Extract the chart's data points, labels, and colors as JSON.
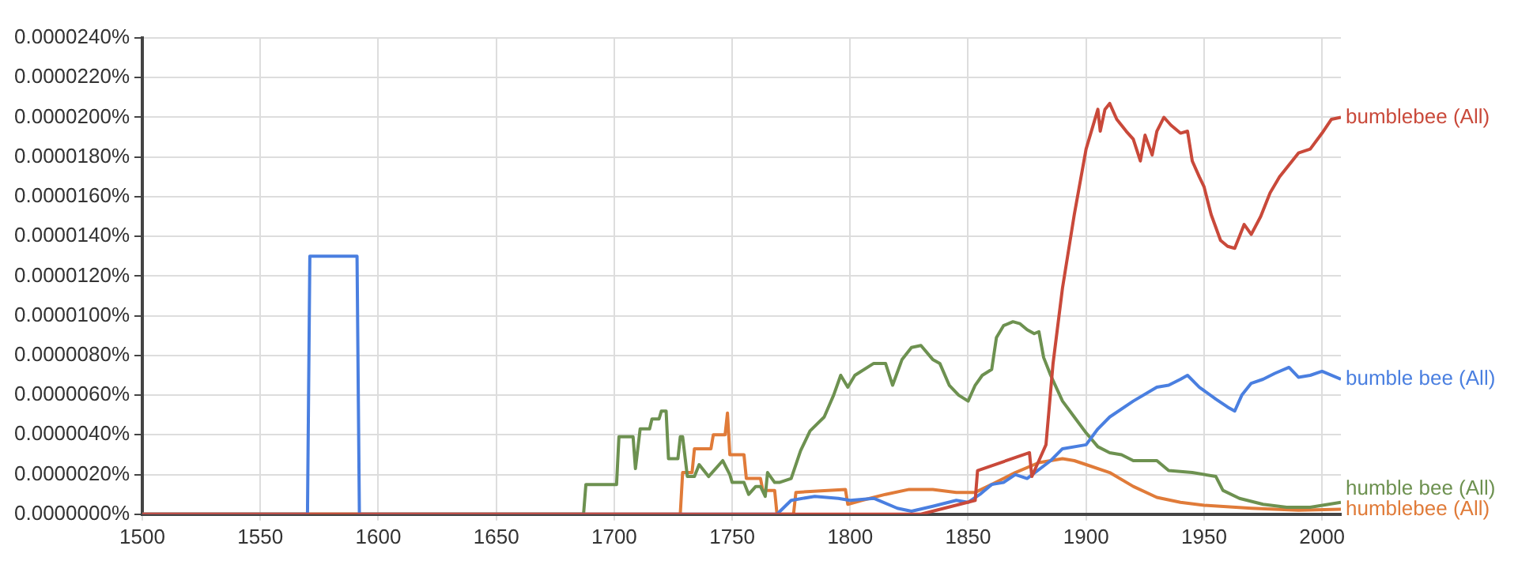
{
  "chart_data": {
    "type": "line",
    "marker": "none",
    "grid": true,
    "legend": false,
    "xlim": [
      1500,
      2008
    ],
    "xticks": [
      1500,
      1550,
      1600,
      1650,
      1700,
      1750,
      1800,
      1850,
      1900,
      1950,
      2000
    ],
    "ylim": [
      0,
      2.4e-05
    ],
    "yticks": [
      {
        "value": 0,
        "label": "0.0000000%"
      },
      {
        "value": 2e-06,
        "label": "0.0000020%"
      },
      {
        "value": 4e-06,
        "label": "0.0000040%"
      },
      {
        "value": 6e-06,
        "label": "0.0000060%"
      },
      {
        "value": 8e-06,
        "label": "0.0000080%"
      },
      {
        "value": 1e-05,
        "label": "0.0000100%"
      },
      {
        "value": 1.2e-05,
        "label": "0.0000120%"
      },
      {
        "value": 1.4e-05,
        "label": "0.0000140%"
      },
      {
        "value": 1.6e-05,
        "label": "0.0000160%"
      },
      {
        "value": 1.8e-05,
        "label": "0.0000180%"
      },
      {
        "value": 2e-05,
        "label": "0.0000200%"
      },
      {
        "value": 2.2e-05,
        "label": "0.0000220%"
      },
      {
        "value": 2.4e-05,
        "label": "0.0000240%"
      }
    ],
    "series": [
      {
        "name": "bumblebee (All)",
        "color": "#c9493a",
        "x": [
          1500,
          1830,
          1853,
          1854,
          1876,
          1877,
          1880,
          1883,
          1886,
          1890,
          1895,
          1900,
          1905,
          1906,
          1908,
          1910,
          1913,
          1917,
          1920,
          1923,
          1925,
          1928,
          1930,
          1933,
          1936,
          1940,
          1943,
          1945,
          1948,
          1950,
          1953,
          1957,
          1960,
          1963,
          1965,
          1967,
          1970,
          1974,
          1978,
          1982,
          1986,
          1990,
          1995,
          2000,
          2004,
          2008
        ],
        "values": [
          0,
          0,
          7e-07,
          2.2e-06,
          3.1e-06,
          1.9e-06,
          2.7e-06,
          3.5e-06,
          7.6e-06,
          1.14e-05,
          1.51e-05,
          1.84e-05,
          2.04e-05,
          1.93e-05,
          2.04e-05,
          2.07e-05,
          1.99e-05,
          1.93e-05,
          1.89e-05,
          1.78e-05,
          1.91e-05,
          1.81e-05,
          1.93e-05,
          2e-05,
          1.96e-05,
          1.92e-05,
          1.93e-05,
          1.78e-05,
          1.7e-05,
          1.65e-05,
          1.51e-05,
          1.38e-05,
          1.35e-05,
          1.34e-05,
          1.4e-05,
          1.46e-05,
          1.41e-05,
          1.5e-05,
          1.62e-05,
          1.7e-05,
          1.76e-05,
          1.82e-05,
          1.84e-05,
          1.92e-05,
          1.99e-05,
          2e-05
        ]
      },
      {
        "name": "bumble bee (All)",
        "color": "#4a7fe0",
        "x": [
          1500,
          1570,
          1571,
          1591,
          1592,
          1769,
          1775,
          1785,
          1795,
          1800,
          1810,
          1820,
          1826,
          1835,
          1845,
          1850,
          1855,
          1860,
          1865,
          1870,
          1875,
          1885,
          1890,
          1900,
          1905,
          1910,
          1920,
          1930,
          1935,
          1940,
          1943,
          1948,
          1955,
          1960,
          1963,
          1966,
          1970,
          1975,
          1980,
          1986,
          1990,
          1995,
          2000,
          2008
        ],
        "values": [
          0,
          0,
          1.3e-05,
          1.3e-05,
          0,
          0,
          7e-07,
          9e-07,
          8e-07,
          7e-07,
          8e-07,
          3e-07,
          1.5e-07,
          4e-07,
          7e-07,
          6e-07,
          1e-06,
          1.5e-06,
          1.6e-06,
          2e-06,
          1.8e-06,
          2.7e-06,
          3.3e-06,
          3.5e-06,
          4.3e-06,
          4.9e-06,
          5.7e-06,
          6.4e-06,
          6.5e-06,
          6.8e-06,
          7e-06,
          6.4e-06,
          5.8e-06,
          5.4e-06,
          5.2e-06,
          6e-06,
          6.6e-06,
          6.8e-06,
          7.1e-06,
          7.4e-06,
          6.9e-06,
          7e-06,
          7.2e-06,
          6.8e-06
        ]
      },
      {
        "name": "humble bee (All)",
        "color": "#6d9150",
        "x": [
          1500,
          1687,
          1688,
          1701,
          1702,
          1708,
          1709,
          1711,
          1715,
          1716,
          1719,
          1720,
          1722,
          1723,
          1727,
          1728,
          1729,
          1731,
          1734,
          1736,
          1740,
          1746,
          1749,
          1750,
          1755,
          1757,
          1760,
          1762,
          1764,
          1765,
          1768,
          1770,
          1775,
          1779,
          1783,
          1789,
          1793,
          1796,
          1799,
          1802,
          1810,
          1815,
          1818,
          1822,
          1826,
          1830,
          1835,
          1838,
          1842,
          1846,
          1850,
          1853,
          1856,
          1860,
          1862,
          1865,
          1869,
          1872,
          1875,
          1878,
          1880,
          1882,
          1885,
          1890,
          1895,
          1900,
          1905,
          1910,
          1915,
          1920,
          1930,
          1935,
          1945,
          1955,
          1958,
          1965,
          1975,
          1985,
          1995,
          2008
        ],
        "values": [
          0,
          0,
          1.5e-06,
          1.5e-06,
          3.9e-06,
          3.9e-06,
          2.3e-06,
          4.3e-06,
          4.3e-06,
          4.8e-06,
          4.8e-06,
          5.2e-06,
          5.2e-06,
          2.8e-06,
          2.8e-06,
          3.9e-06,
          3.9e-06,
          1.9e-06,
          1.9e-06,
          2.5e-06,
          1.9e-06,
          2.7e-06,
          2e-06,
          1.6e-06,
          1.6e-06,
          1e-06,
          1.4e-06,
          1.4e-06,
          9e-07,
          2.1e-06,
          1.6e-06,
          1.6e-06,
          1.8e-06,
          3.2e-06,
          4.2e-06,
          4.9e-06,
          6e-06,
          7e-06,
          6.4e-06,
          7e-06,
          7.6e-06,
          7.6e-06,
          6.5e-06,
          7.8e-06,
          8.4e-06,
          8.5e-06,
          7.8e-06,
          7.6e-06,
          6.5e-06,
          6e-06,
          5.7e-06,
          6.5e-06,
          7e-06,
          7.3e-06,
          8.9e-06,
          9.5e-06,
          9.7e-06,
          9.6e-06,
          9.3e-06,
          9.1e-06,
          9.2e-06,
          7.9e-06,
          7e-06,
          5.7e-06,
          4.9e-06,
          4.1e-06,
          3.4e-06,
          3.1e-06,
          3e-06,
          2.7e-06,
          2.7e-06,
          2.2e-06,
          2.1e-06,
          1.9e-06,
          1.2e-06,
          8e-07,
          5e-07,
          3.5e-07,
          3.5e-07,
          6e-07
        ]
      },
      {
        "name": "humblebee (All)",
        "color": "#e07b39",
        "x": [
          1500,
          1728,
          1729,
          1733,
          1734,
          1741,
          1742,
          1747,
          1748,
          1749,
          1750,
          1755,
          1756,
          1762,
          1763,
          1768,
          1769,
          1776,
          1777,
          1798,
          1799,
          1805,
          1815,
          1825,
          1835,
          1845,
          1853,
          1860,
          1870,
          1880,
          1890,
          1895,
          1900,
          1910,
          1920,
          1930,
          1940,
          1950,
          1970,
          1990,
          2008
        ],
        "values": [
          0,
          0,
          2.1e-06,
          2.1e-06,
          3.3e-06,
          3.3e-06,
          4e-06,
          4e-06,
          5.1e-06,
          3e-06,
          3e-06,
          3e-06,
          1.8e-06,
          1.8e-06,
          1.2e-06,
          1.2e-06,
          0,
          0,
          1.1e-06,
          1.25e-06,
          5e-07,
          7e-07,
          1e-06,
          1.25e-06,
          1.25e-06,
          1.1e-06,
          1.1e-06,
          1.5e-06,
          2.1e-06,
          2.6e-06,
          2.8e-06,
          2.7e-06,
          2.5e-06,
          2.1e-06,
          1.4e-06,
          8.5e-07,
          6e-07,
          4.5e-07,
          3e-07,
          2e-07,
          2.5e-07
        ]
      }
    ]
  }
}
